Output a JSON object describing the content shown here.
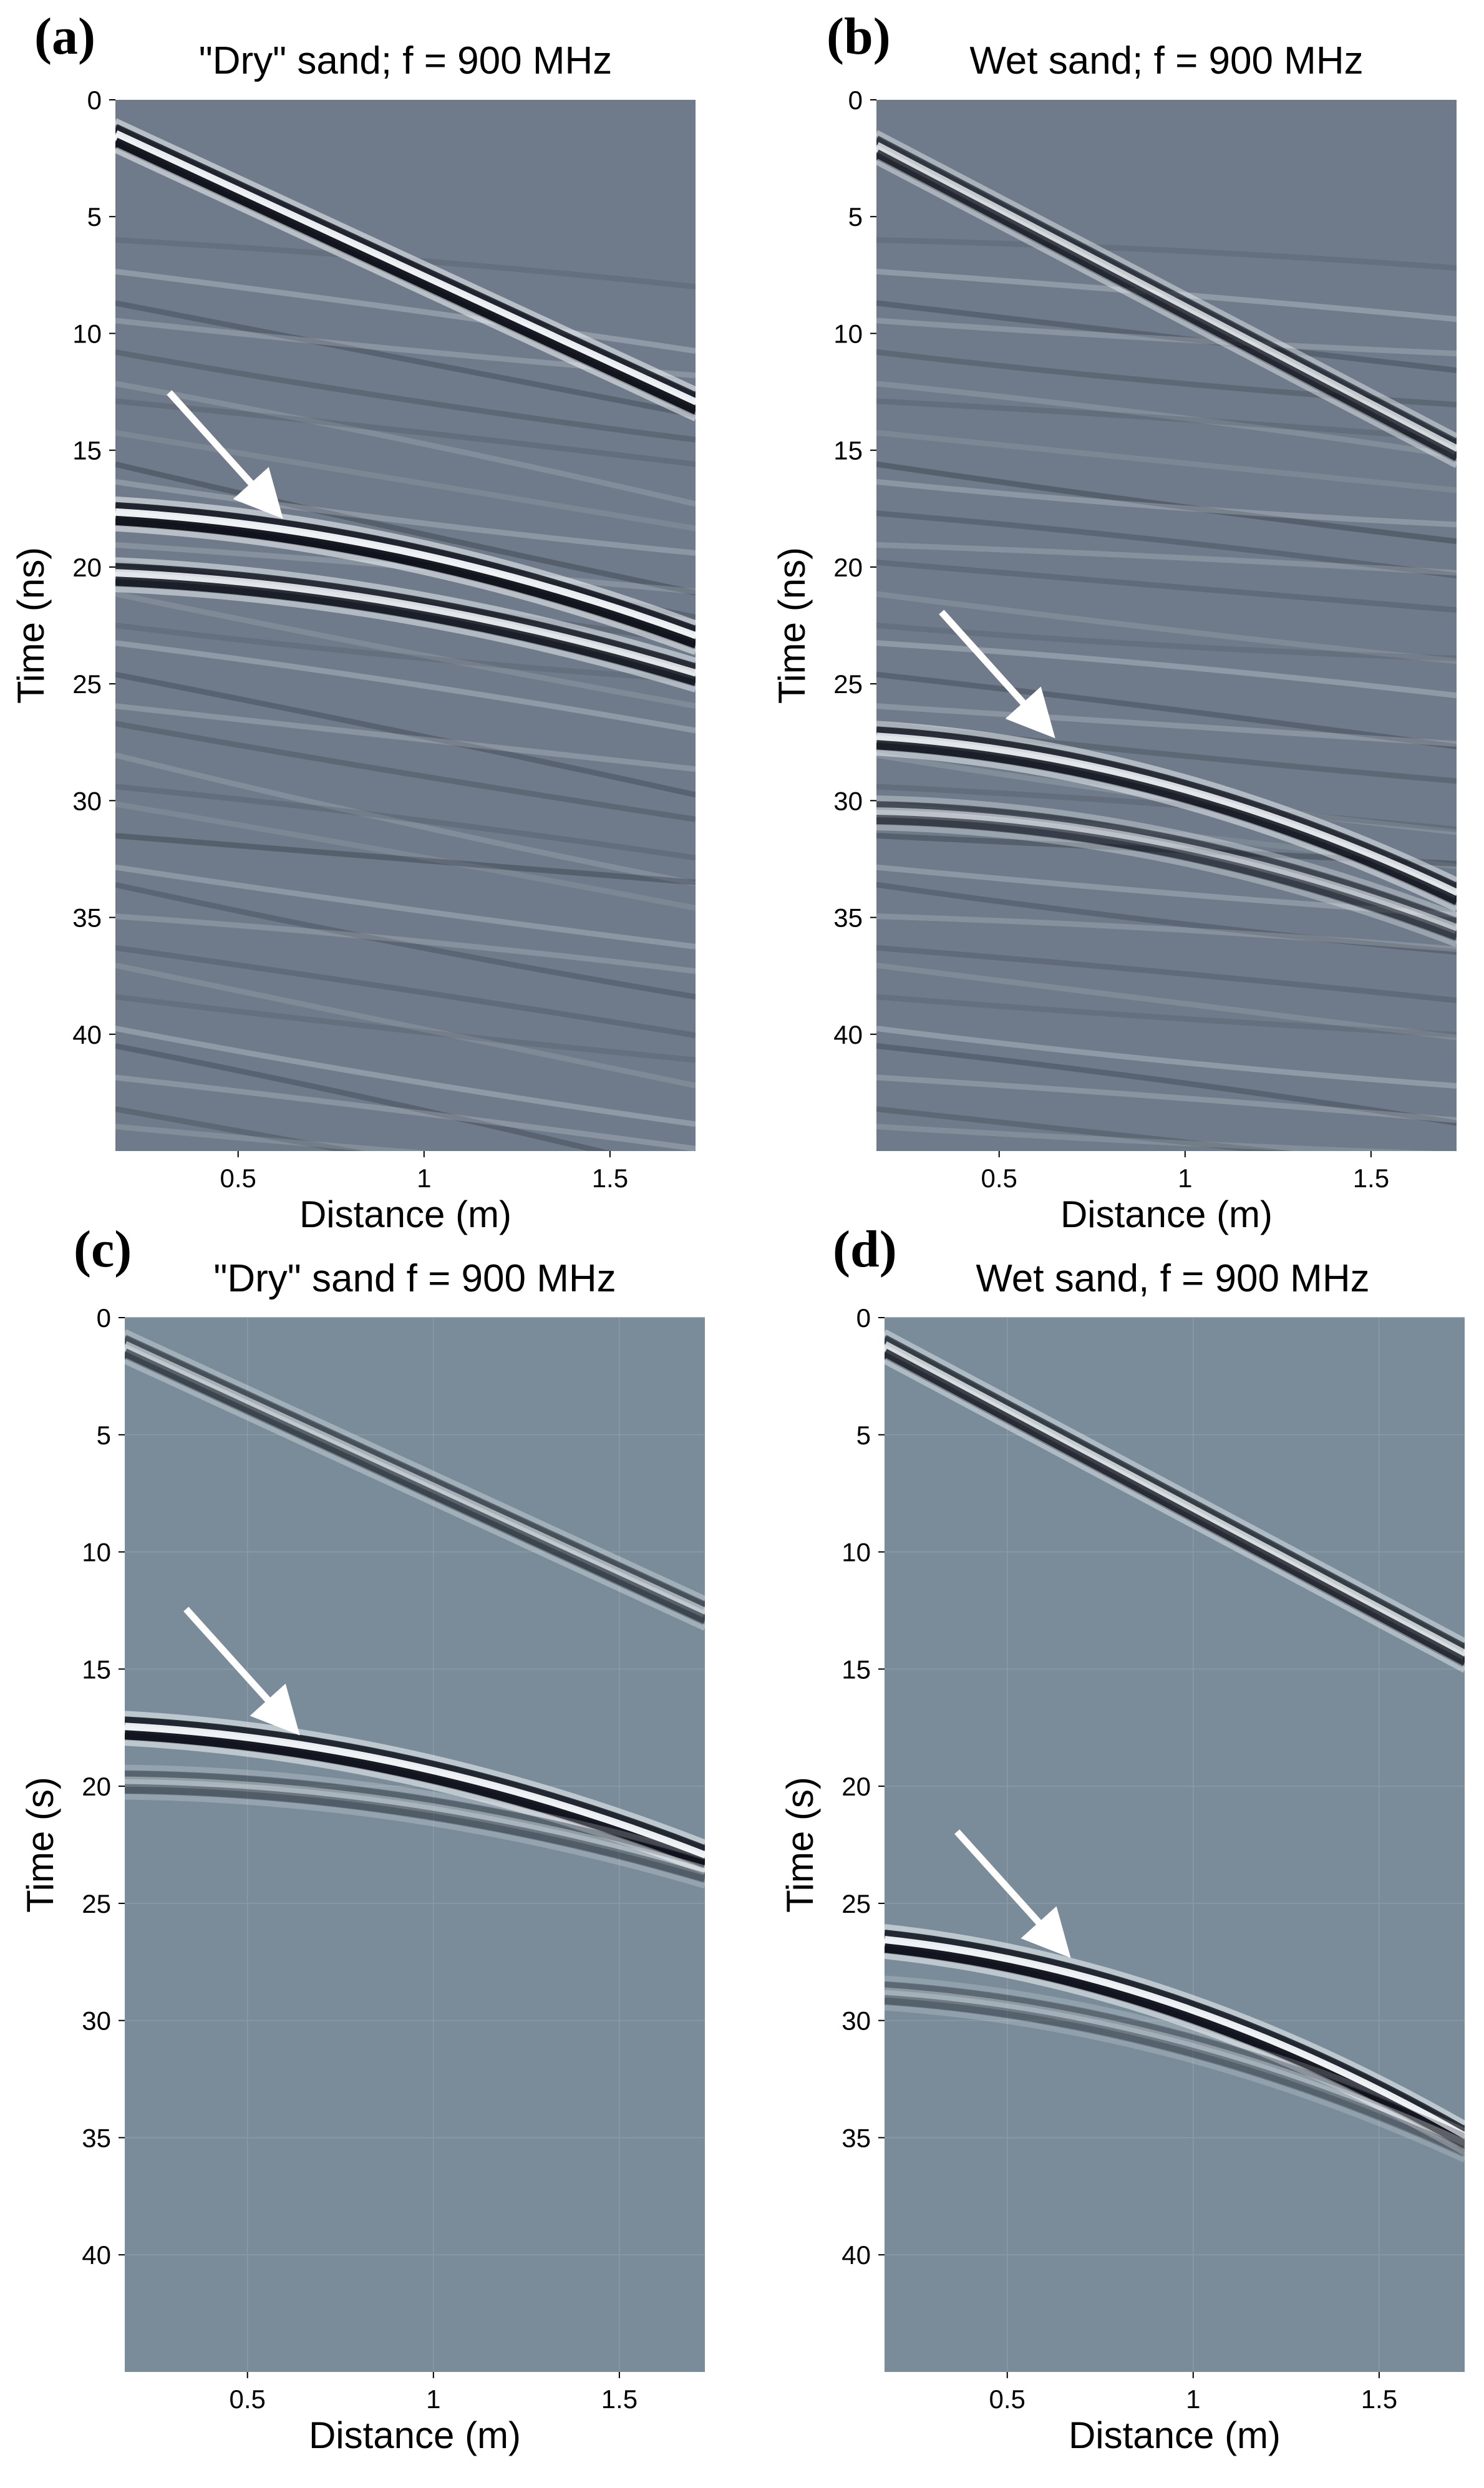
{
  "figure": {
    "colors": {
      "background_measured": "#6f7b8a",
      "background_synthetic": "#7a8c99",
      "dark_phase": "#0d0f18",
      "light_phase": "#f4f8fa",
      "arrow": "#ffffff"
    }
  },
  "chart_data": [
    {
      "type": "heatmap",
      "panel_label": "(a)",
      "title": "\"Dry\" sand; f =  900 MHz",
      "xlabel": "Distance (m)",
      "ylabel": "Time (ns)",
      "xlim": [
        0.17,
        1.73
      ],
      "ylim": [
        45,
        0
      ],
      "xticks": [
        0.5,
        1,
        1.5
      ],
      "xtick_labels": [
        "0.5",
        "1",
        "1.5"
      ],
      "yticks": [
        0,
        5,
        10,
        15,
        20,
        25,
        30,
        35,
        40
      ],
      "ytick_labels": [
        "0",
        "5",
        "10",
        "15",
        "20",
        "25",
        "30",
        "35",
        "40"
      ],
      "grid": false,
      "style": "measured",
      "events": [
        {
          "name": "direct-wave",
          "x0": 0.17,
          "t0": 1.5,
          "x1": 1.73,
          "t1": 13.0,
          "amp": 1.0,
          "curvature": 0
        },
        {
          "name": "reflection-primary",
          "x0": 0.17,
          "t0": 17.7,
          "x1": 1.73,
          "t1": 23.0,
          "amp": 1.0,
          "curvature": 1.2
        },
        {
          "name": "reflection-secondary",
          "x0": 0.17,
          "t0": 20.3,
          "x1": 1.73,
          "t1": 24.6,
          "amp": 0.9,
          "curvature": 1.0
        }
      ],
      "arrow": {
        "x": 0.6,
        "t": 17.6
      }
    },
    {
      "type": "heatmap",
      "panel_label": "(b)",
      "title": "Wet sand; f =  900 MHz",
      "xlabel": "Distance (m)",
      "ylabel": "Time (ns)",
      "xlim": [
        0.17,
        1.73
      ],
      "ylim": [
        45,
        0
      ],
      "xticks": [
        0.5,
        1,
        1.5
      ],
      "xtick_labels": [
        "0.5",
        "1",
        "1.5"
      ],
      "yticks": [
        0,
        5,
        10,
        15,
        20,
        25,
        30,
        35,
        40
      ],
      "ytick_labels": [
        "0",
        "5",
        "10",
        "15",
        "20",
        "25",
        "30",
        "35",
        "40"
      ],
      "grid": false,
      "style": "measured",
      "events": [
        {
          "name": "direct-wave",
          "x0": 0.17,
          "t0": 2.0,
          "x1": 1.73,
          "t1": 15.0,
          "amp": 0.8,
          "curvature": 0
        },
        {
          "name": "reflection-primary",
          "x0": 0.17,
          "t0": 27.3,
          "x1": 1.73,
          "t1": 34.0,
          "amp": 0.9,
          "curvature": 1.6
        },
        {
          "name": "reflection-secondary",
          "x0": 0.17,
          "t0": 30.5,
          "x1": 1.73,
          "t1": 35.5,
          "amp": 0.6,
          "curvature": 1.4
        }
      ],
      "arrow": {
        "x": 0.63,
        "t": 27.0
      }
    },
    {
      "type": "heatmap",
      "panel_label": "(c)",
      "title": "\"Dry\" sand  f = 900  MHz",
      "xlabel": "Distance (m)",
      "ylabel": "Time (s)",
      "xlim": [
        0.17,
        1.73
      ],
      "ylim": [
        45,
        0
      ],
      "xticks": [
        0.5,
        1,
        1.5
      ],
      "xtick_labels": [
        "0.5",
        "1",
        "1.5"
      ],
      "yticks": [
        0,
        5,
        10,
        15,
        20,
        25,
        30,
        35,
        40
      ],
      "ytick_labels": [
        "0",
        "5",
        "10",
        "15",
        "20",
        "25",
        "30",
        "35",
        "40"
      ],
      "grid": true,
      "style": "synthetic",
      "events": [
        {
          "name": "direct-wave",
          "x0": 0.17,
          "t0": 1.2,
          "x1": 1.73,
          "t1": 12.6,
          "amp": 0.6,
          "curvature": 0
        },
        {
          "name": "reflection-primary",
          "x0": 0.17,
          "t0": 17.5,
          "x1": 1.73,
          "t1": 23.0,
          "amp": 1.0,
          "curvature": 1.3
        },
        {
          "name": "reflection-secondary",
          "x0": 0.17,
          "t0": 19.8,
          "x1": 1.73,
          "t1": 23.6,
          "amp": 0.4,
          "curvature": 1.1
        }
      ],
      "arrow": {
        "x": 0.62,
        "t": 17.5
      }
    },
    {
      "type": "heatmap",
      "panel_label": "(d)",
      "title": "Wet sand,  f = 900  MHz",
      "xlabel": "Distance (m)",
      "ylabel": "Time (s)",
      "xlim": [
        0.17,
        1.73
      ],
      "ylim": [
        45,
        0
      ],
      "xticks": [
        0.5,
        1,
        1.5
      ],
      "xtick_labels": [
        "0.5",
        "1",
        "1.5"
      ],
      "yticks": [
        0,
        5,
        10,
        15,
        20,
        25,
        30,
        35,
        40
      ],
      "ytick_labels": [
        "0",
        "5",
        "10",
        "15",
        "20",
        "25",
        "30",
        "35",
        "40"
      ],
      "grid": true,
      "style": "synthetic",
      "events": [
        {
          "name": "direct-wave",
          "x0": 0.17,
          "t0": 1.2,
          "x1": 1.73,
          "t1": 14.4,
          "amp": 0.8,
          "curvature": 0
        },
        {
          "name": "reflection-primary",
          "x0": 0.17,
          "t0": 26.6,
          "x1": 1.73,
          "t1": 35.0,
          "amp": 1.0,
          "curvature": 1.8
        },
        {
          "name": "reflection-secondary",
          "x0": 0.17,
          "t0": 28.8,
          "x1": 1.73,
          "t1": 35.3,
          "amp": 0.35,
          "curvature": 1.5
        }
      ],
      "arrow": {
        "x": 0.65,
        "t": 27.0
      }
    }
  ]
}
